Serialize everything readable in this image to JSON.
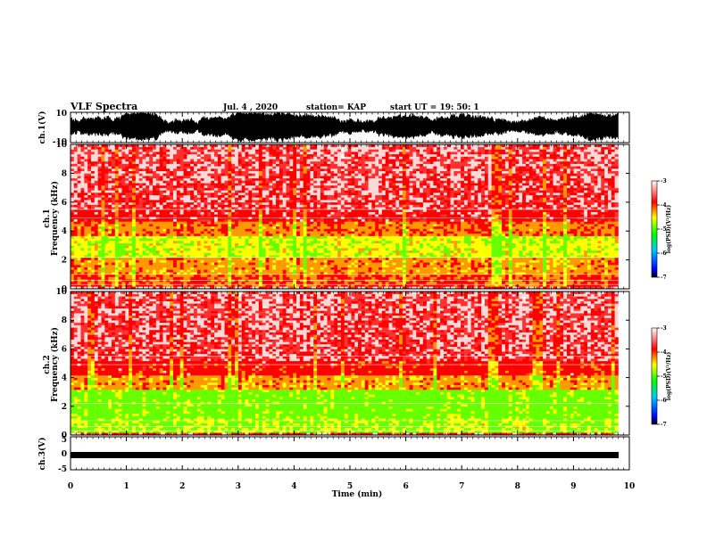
{
  "header": {
    "title": "VLF Spectra",
    "date": "Jul. 4 , 2020",
    "station": "station= KAP",
    "start": "start UT = 19: 50: 1"
  },
  "chart_data": [
    {
      "type": "line",
      "name": "ch1-waveform",
      "ylabel": "ch.1(V)",
      "ylim": [
        -10,
        10
      ],
      "ytick_labels": [
        "10",
        "-10"
      ]
    },
    {
      "type": "heatmap",
      "name": "ch1-spectrogram",
      "ylabel": "Frequency (kHz)",
      "channel_label": "ch.1",
      "ylim": [
        0,
        10
      ],
      "ytick_labels": [
        "0",
        "2",
        "4",
        "6",
        "8",
        "10"
      ],
      "colorbar": {
        "label": "log(PSD)(V²/Hz)",
        "range": [
          -7,
          -3
        ],
        "tick_labels": [
          "-3",
          "-4",
          "-5",
          "-6",
          "-7"
        ]
      }
    },
    {
      "type": "heatmap",
      "name": "ch2-spectrogram",
      "ylabel": "Frequency (kHz)",
      "channel_label": "ch.2",
      "ylim": [
        0,
        10
      ],
      "ytick_labels": [
        "0",
        "2",
        "4",
        "6",
        "8",
        "10"
      ],
      "colorbar": {
        "label": "log(PSD)(V²/Hz)",
        "range": [
          -7,
          -3
        ],
        "tick_labels": [
          "-3",
          "-4",
          "-5",
          "-6",
          "-7"
        ]
      }
    },
    {
      "type": "line",
      "name": "ch3-waveform",
      "ylabel": "ch.3(V)",
      "ylim": [
        -5,
        5
      ],
      "ytick_labels": [
        "5",
        "0",
        "-5"
      ]
    }
  ],
  "xaxis": {
    "label": "Time (min)",
    "range": [
      0,
      10
    ],
    "data_end": 9.8,
    "tick_labels": [
      "0",
      "1",
      "2",
      "3",
      "4",
      "5",
      "6",
      "7",
      "8",
      "9",
      "10"
    ]
  },
  "colors": {
    "waveform": "#000000",
    "spectrogram_high": "#ff0000",
    "spectrogram_mid": "#ffff00",
    "spectrogram_low": "#00ff00"
  }
}
